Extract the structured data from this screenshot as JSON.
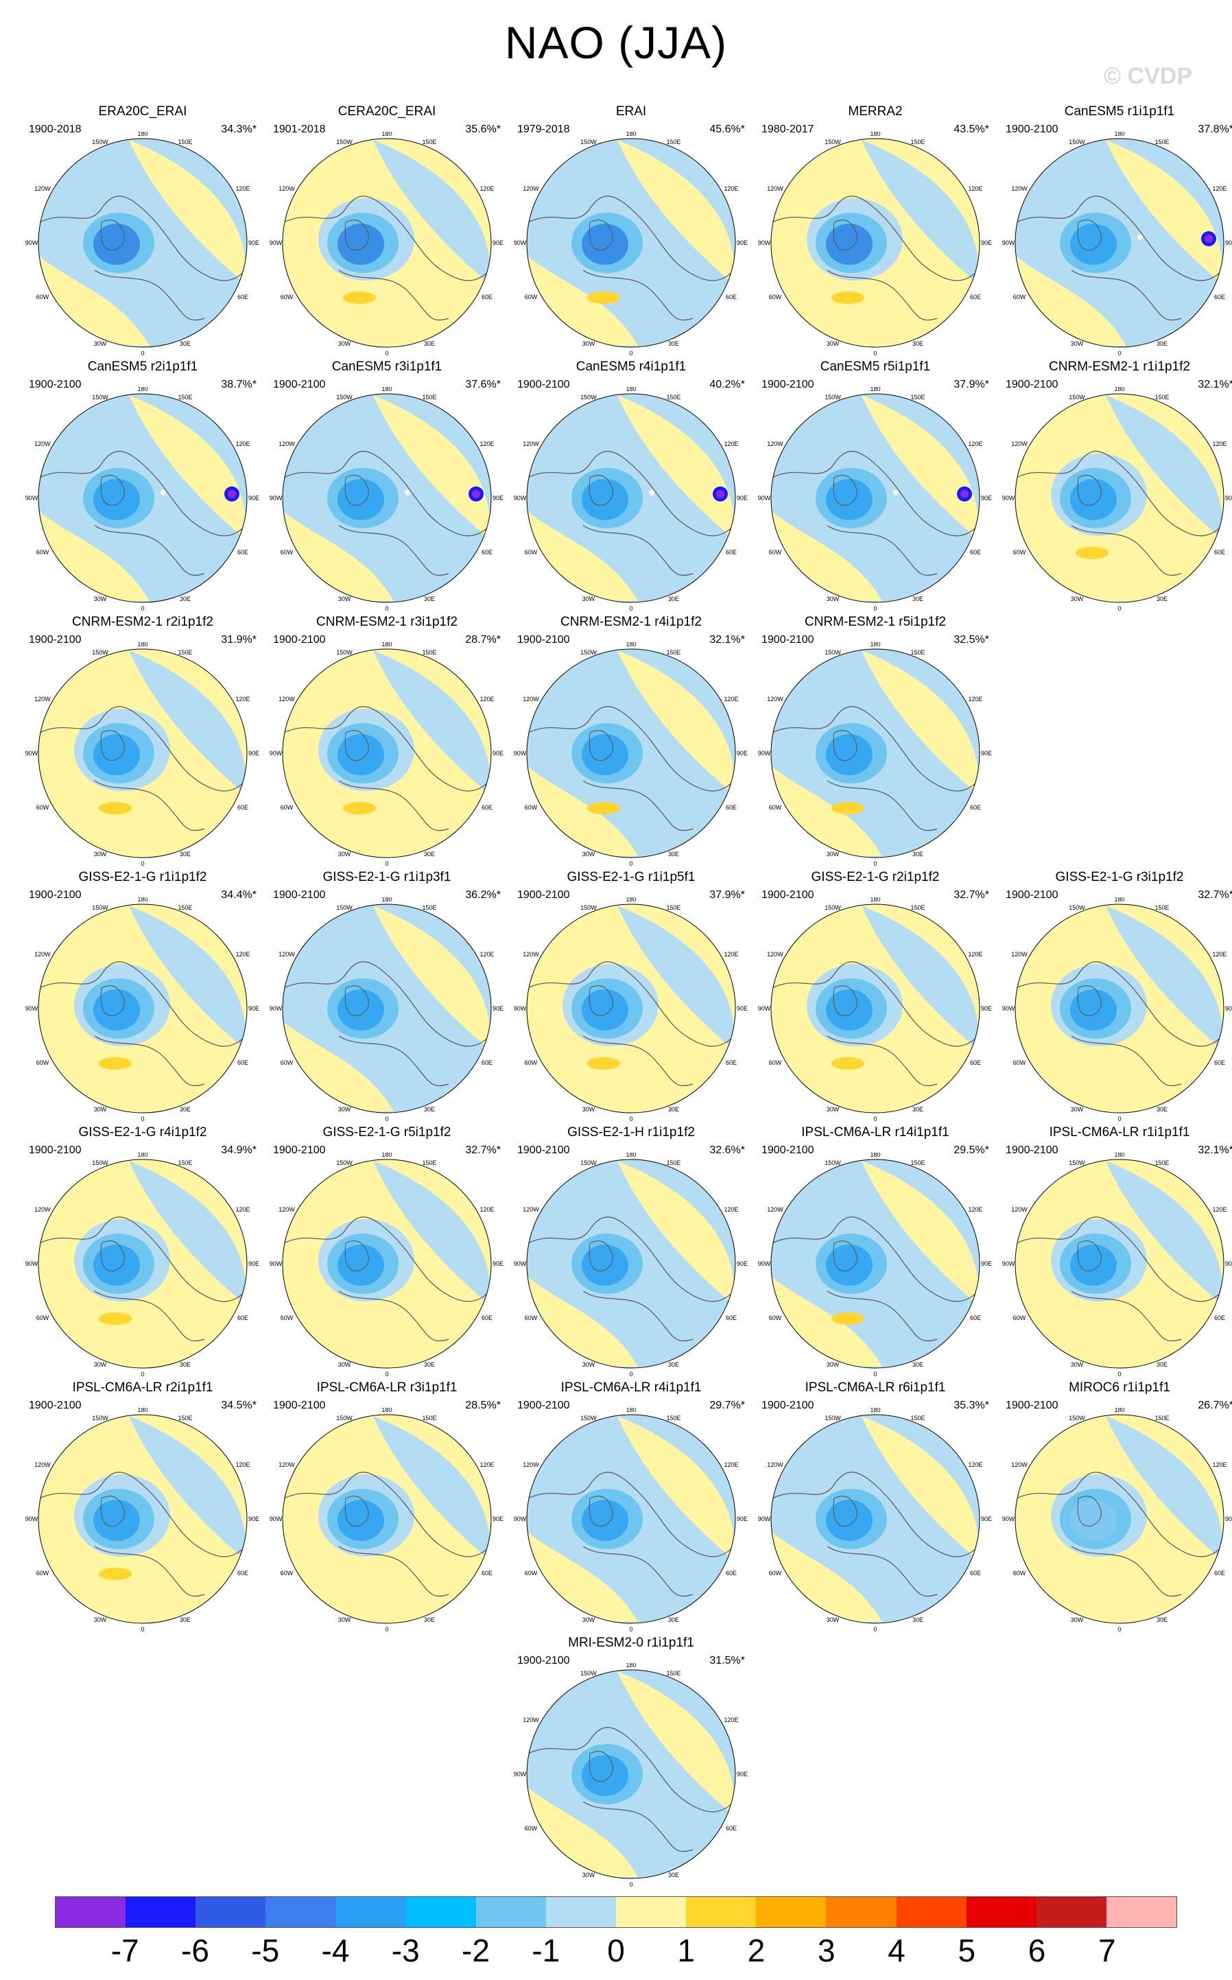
{
  "title": "NAO (JJA)",
  "watermark": "© CVDP",
  "map_labels": {
    "lon_180": "180",
    "lon_150w": "150W",
    "lon_150e": "150E",
    "lon_120w": "120W",
    "lon_120e": "120E",
    "lon_90w": "90W",
    "lon_90e": "90E",
    "lon_60w": "60W",
    "lon_60e": "60E",
    "lon_30w": "30W",
    "lon_30e": "30E",
    "lon_0": "0"
  },
  "colors": {
    "ocean_positive": "#fff5a3",
    "ocean_negative": "#b4dcf2",
    "coast": "#555555"
  },
  "panels": [
    {
      "name": "ERA20C_ERAI",
      "period": "1900-2018",
      "pct": "34.3%*",
      "ring": "#b4dcf2",
      "center": "#3a8ee6",
      "feature": null
    },
    {
      "name": "CERA20C_ERAI",
      "period": "1901-2018",
      "pct": "35.6%*",
      "ring": "#fff5a3",
      "center": "#3a8ee6",
      "feature": "orange"
    },
    {
      "name": "ERAI",
      "period": "1979-2018",
      "pct": "45.6%*",
      "ring": "#b4dcf2",
      "center": "#3a8ee6",
      "feature": "orange"
    },
    {
      "name": "MERRA2",
      "period": "1980-2017",
      "pct": "43.5%*",
      "ring": "#fff5a3",
      "center": "#3a8ee6",
      "feature": "orange"
    },
    {
      "name": "CanESM5 r1i1p1f1",
      "period": "1900-2100",
      "pct": "37.8%*",
      "ring": "#b4dcf2",
      "center": "#36a7f0",
      "feature": "purple"
    },
    {
      "name": "CanESM5 r2i1p1f1",
      "period": "1900-2100",
      "pct": "38.7%*",
      "ring": "#b4dcf2",
      "center": "#36a7f0",
      "feature": "purple"
    },
    {
      "name": "CanESM5 r3i1p1f1",
      "period": "1900-2100",
      "pct": "37.6%*",
      "ring": "#b4dcf2",
      "center": "#36a7f0",
      "feature": "purple"
    },
    {
      "name": "CanESM5 r4i1p1f1",
      "period": "1900-2100",
      "pct": "40.2%*",
      "ring": "#b4dcf2",
      "center": "#36a7f0",
      "feature": "purple"
    },
    {
      "name": "CanESM5 r5i1p1f1",
      "period": "1900-2100",
      "pct": "37.9%*",
      "ring": "#b4dcf2",
      "center": "#36a7f0",
      "feature": "purple"
    },
    {
      "name": "CNRM-ESM2-1 r1i1p1f2",
      "period": "1900-2100",
      "pct": "32.1%*",
      "ring": "#fff5a3",
      "center": "#36a7f0",
      "feature": "orange"
    },
    {
      "name": "CNRM-ESM2-1 r2i1p1f2",
      "period": "1900-2100",
      "pct": "31.9%*",
      "ring": "#fff5a3",
      "center": "#36a7f0",
      "feature": "orange"
    },
    {
      "name": "CNRM-ESM2-1 r3i1p1f2",
      "period": "1900-2100",
      "pct": "28.7%*",
      "ring": "#fff5a3",
      "center": "#36a7f0",
      "feature": "orange"
    },
    {
      "name": "CNRM-ESM2-1 r4i1p1f2",
      "period": "1900-2100",
      "pct": "32.1%*",
      "ring": "#b4dcf2",
      "center": "#36a7f0",
      "feature": "orange"
    },
    {
      "name": "CNRM-ESM2-1 r5i1p1f2",
      "period": "1900-2100",
      "pct": "32.5%*",
      "ring": "#b4dcf2",
      "center": "#36a7f0",
      "feature": "orange"
    },
    {
      "name": "GISS-E2-1-G r1i1p1f2",
      "period": "1900-2100",
      "pct": "34.4%*",
      "ring": "#fff5a3",
      "center": "#36a7f0",
      "feature": "orange"
    },
    {
      "name": "GISS-E2-1-G r1i1p3f1",
      "period": "1900-2100",
      "pct": "36.2%*",
      "ring": "#b4dcf2",
      "center": "#36a7f0",
      "feature": null
    },
    {
      "name": "GISS-E2-1-G r1i1p5f1",
      "period": "1900-2100",
      "pct": "37.9%*",
      "ring": "#fff5a3",
      "center": "#36a7f0",
      "feature": "orange"
    },
    {
      "name": "GISS-E2-1-G r2i1p1f2",
      "period": "1900-2100",
      "pct": "32.7%*",
      "ring": "#fff5a3",
      "center": "#36a7f0",
      "feature": "orange"
    },
    {
      "name": "GISS-E2-1-G r3i1p1f2",
      "period": "1900-2100",
      "pct": "32.7%*",
      "ring": "#fff5a3",
      "center": "#36a7f0",
      "feature": null
    },
    {
      "name": "GISS-E2-1-G r4i1p1f2",
      "period": "1900-2100",
      "pct": "34.9%*",
      "ring": "#fff5a3",
      "center": "#36a7f0",
      "feature": "orange"
    },
    {
      "name": "GISS-E2-1-G r5i1p1f2",
      "period": "1900-2100",
      "pct": "32.7%*",
      "ring": "#fff5a3",
      "center": "#36a7f0",
      "feature": null
    },
    {
      "name": "GISS-E2-1-H r1i1p1f2",
      "period": "1900-2100",
      "pct": "32.6%*",
      "ring": "#b4dcf2",
      "center": "#36a7f0",
      "feature": null
    },
    {
      "name": "IPSL-CM6A-LR r14i1p1f1",
      "period": "1900-2100",
      "pct": "29.5%*",
      "ring": "#b4dcf2",
      "center": "#36a7f0",
      "feature": "orange"
    },
    {
      "name": "IPSL-CM6A-LR r1i1p1f1",
      "period": "1900-2100",
      "pct": "32.1%*",
      "ring": "#fff5a3",
      "center": "#36a7f0",
      "feature": null
    },
    {
      "name": "IPSL-CM6A-LR r2i1p1f1",
      "period": "1900-2100",
      "pct": "34.5%*",
      "ring": "#fff5a3",
      "center": "#36a7f0",
      "feature": "orange"
    },
    {
      "name": "IPSL-CM6A-LR r3i1p1f1",
      "period": "1900-2100",
      "pct": "28.5%*",
      "ring": "#fff5a3",
      "center": "#36a7f0",
      "feature": null
    },
    {
      "name": "IPSL-CM6A-LR r4i1p1f1",
      "period": "1900-2100",
      "pct": "29.7%*",
      "ring": "#b4dcf2",
      "center": "#36a7f0",
      "feature": null
    },
    {
      "name": "IPSL-CM6A-LR r6i1p1f1",
      "period": "1900-2100",
      "pct": "35.3%*",
      "ring": "#b4dcf2",
      "center": "#36a7f0",
      "feature": null
    },
    {
      "name": "MIROC6 r1i1p1f1",
      "period": "1900-2100",
      "pct": "26.7%*",
      "ring": "#fff5a3",
      "center": "#7fc8f2",
      "feature": null
    },
    {
      "name": "MRI-ESM2-0 r1i1p1f1",
      "period": "1900-2100",
      "pct": "31.5%*",
      "ring": "#b4dcf2",
      "center": "#36a7f0",
      "feature": null
    }
  ],
  "colorbar": {
    "colors": [
      "#8a2be2",
      "#1a1aff",
      "#2e5ae6",
      "#3d7ff0",
      "#2a9ef5",
      "#00bfff",
      "#6ec6f0",
      "#b4dcf2",
      "#fff5a3",
      "#ffd52e",
      "#ffae00",
      "#ff8000",
      "#ff4500",
      "#e60000",
      "#c71c1c",
      "#ffb3b3"
    ],
    "labels": [
      "-7",
      "-6",
      "-5",
      "-4",
      "-3",
      "-2",
      "-1",
      "0",
      "1",
      "2",
      "3",
      "4",
      "5",
      "6",
      "7"
    ]
  }
}
